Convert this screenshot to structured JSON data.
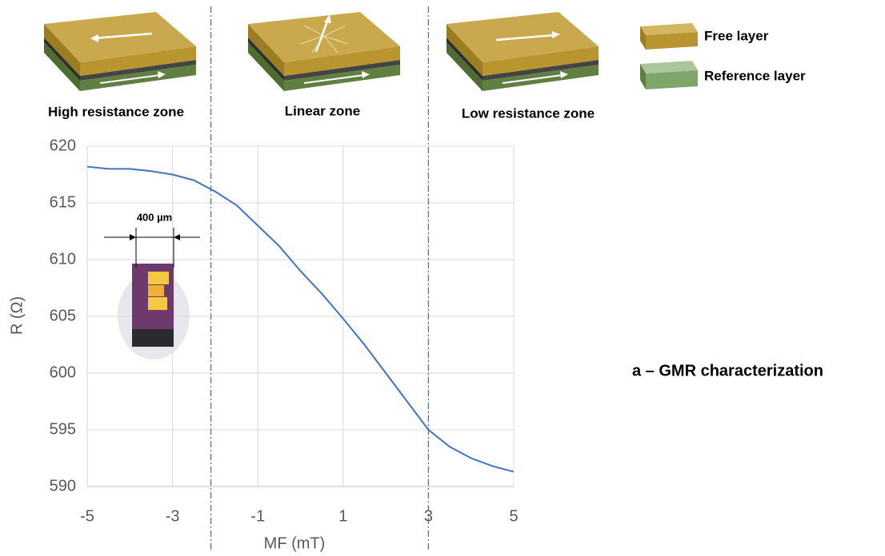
{
  "chart_data": {
    "type": "line",
    "x": [
      -5,
      -4.5,
      -4,
      -3.5,
      -3,
      -2.5,
      -2,
      -1.5,
      -1,
      -0.5,
      0,
      0.5,
      1,
      1.5,
      2,
      2.5,
      3,
      3.5,
      4,
      4.5,
      5
    ],
    "values": [
      618.2,
      618.0,
      618.0,
      617.8,
      617.5,
      617.0,
      616.0,
      614.8,
      613.0,
      611.2,
      609.0,
      607.0,
      604.8,
      602.5,
      600.0,
      597.5,
      595.0,
      593.5,
      592.5,
      591.8,
      591.3
    ],
    "color": "#4472c4",
    "xlim": [
      -5,
      5
    ],
    "xticks": [
      -5,
      -3,
      -1,
      1,
      3,
      5
    ],
    "ylim": [
      590,
      620
    ],
    "yticks": [
      590,
      595,
      600,
      605,
      610,
      615,
      620
    ],
    "grid": true,
    "xlabel": "MF (mT)",
    "ylabel": "R (Ω)",
    "zone_boundaries": [
      -2.1,
      3
    ],
    "zones": [
      "High resistance zone",
      "Linear zone",
      "Low resistance zone"
    ],
    "legend": [
      "Free layer",
      "Reference layer"
    ],
    "inset_label": "400 µm",
    "caption": "a – GMR characterization"
  }
}
